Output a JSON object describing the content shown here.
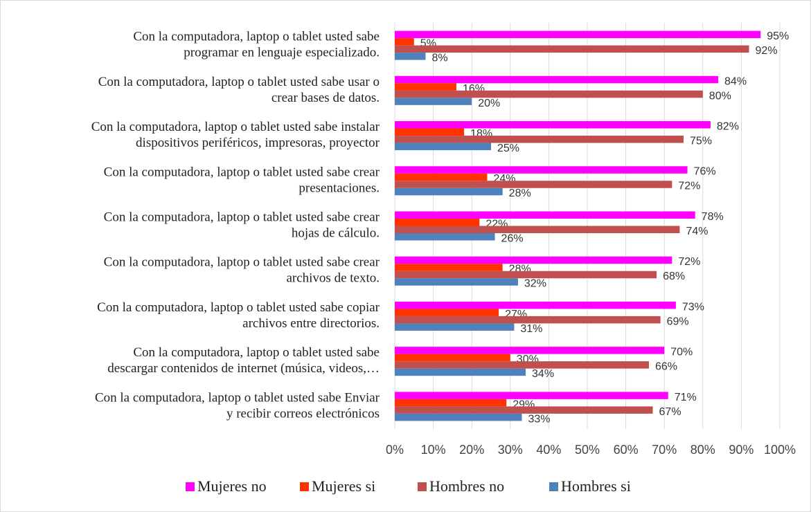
{
  "chart_data": {
    "type": "bar",
    "orientation": "horizontal",
    "categories": [
      [
        "Con la computadora, laptop o tablet usted sabe",
        "programar en lenguaje especializado."
      ],
      [
        "Con la computadora, laptop o tablet usted sabe usar o",
        "crear bases de datos."
      ],
      [
        "Con la computadora, laptop o tablet usted sabe instalar",
        "dispositivos periféricos, impresoras, proyector"
      ],
      [
        "Con la computadora, laptop o tablet usted sabe crear",
        "presentaciones."
      ],
      [
        "Con la computadora, laptop o tablet usted sabe crear",
        "hojas de cálculo."
      ],
      [
        "Con la computadora, laptop o tablet usted sabe crear",
        "archivos de texto."
      ],
      [
        "Con la computadora, laptop o tablet usted sabe copiar",
        "archivos entre directorios."
      ],
      [
        "Con la computadora, laptop o tablet usted sabe",
        "descargar contenidos de internet (música, videos,…"
      ],
      [
        "Con la computadora, laptop o tablet usted sabe Enviar",
        "y recibir correos electrónicos"
      ]
    ],
    "series": [
      {
        "name": "Mujeres no",
        "color": "#ff00ff",
        "values": [
          95,
          84,
          82,
          76,
          78,
          72,
          73,
          70,
          71
        ],
        "value_labels": [
          "95%",
          "84%",
          "82%",
          "76%",
          "78%",
          "72%",
          "73%",
          "70%",
          "71%"
        ]
      },
      {
        "name": "Mujeres si",
        "color": "#ff3300",
        "values": [
          5,
          16,
          18,
          24,
          22,
          28,
          27,
          30,
          29
        ],
        "value_labels": [
          "5%",
          "16%",
          "18%",
          "24%",
          "22%",
          "28%",
          "27%",
          "30%",
          "29%"
        ]
      },
      {
        "name": "Hombres no",
        "color": "#c0504d",
        "values": [
          92,
          80,
          75,
          72,
          74,
          68,
          69,
          66,
          67
        ],
        "value_labels": [
          "92%",
          "80%",
          "75%",
          "72%",
          "74%",
          "68%",
          "69%",
          "66%",
          "67%"
        ]
      },
      {
        "name": "Hombres si",
        "color": "#4f81bd",
        "values": [
          8,
          20,
          25,
          28,
          26,
          32,
          31,
          34,
          33
        ],
        "value_labels": [
          "8%",
          "20%",
          "25%",
          "28%",
          "26%",
          "32%",
          "31%",
          "34%",
          "33%"
        ]
      }
    ],
    "xlim": [
      0,
      100
    ],
    "xticks": [
      {
        "value": 0,
        "label": "0%"
      },
      {
        "value": 10,
        "label": "10%"
      },
      {
        "value": 20,
        "label": "20%"
      },
      {
        "value": 30,
        "label": "30%"
      },
      {
        "value": 40,
        "label": "40%"
      },
      {
        "value": 50,
        "label": "50%"
      },
      {
        "value": 60,
        "label": "60%"
      },
      {
        "value": 70,
        "label": "70%"
      },
      {
        "value": 80,
        "label": "80%"
      },
      {
        "value": 90,
        "label": "90%"
      },
      {
        "value": 100,
        "label": "100%"
      }
    ],
    "grid": true,
    "legend": "bottom"
  }
}
